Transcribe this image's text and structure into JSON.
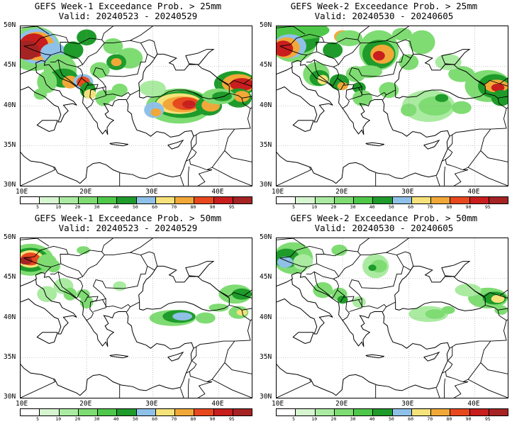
{
  "panels": [
    {
      "title": "GEFS Week-1 Exceedance Prob. > 25mm",
      "valid": "Valid: 20240523 - 20240529",
      "threshold": 25,
      "week": 1
    },
    {
      "title": "GEFS Week-2 Exceedance Prob. > 25mm",
      "valid": "Valid: 20240530 - 20240605",
      "threshold": 25,
      "week": 2
    },
    {
      "title": "GEFS Week-1 Exceedance Prob. > 50mm",
      "valid": "Valid: 20240523 - 20240529",
      "threshold": 50,
      "week": 1
    },
    {
      "title": "GEFS Week-2 Exceedance Prob. > 50mm",
      "valid": "Valid: 20240530 - 20240605",
      "threshold": 50,
      "week": 2
    }
  ],
  "axes": {
    "lat_labels": [
      "50N",
      "45N",
      "40N",
      "35N",
      "30N"
    ],
    "lon_labels": [
      "10E",
      "20E",
      "30E",
      "40E"
    ],
    "lat_range": [
      30,
      50
    ],
    "lon_range": [
      10,
      45
    ]
  },
  "colorbar": {
    "labels": [
      "5",
      "10",
      "20",
      "30",
      "40",
      "50",
      "60",
      "70",
      "80",
      "90",
      "95"
    ],
    "colors": [
      "#ffffff",
      "#d6f5d0",
      "#aaeba1",
      "#7fdc73",
      "#4fc84a",
      "#1e9b2a",
      "#8fc1e8",
      "#f5e27a",
      "#f2a838",
      "#e8481e",
      "#c81e1e",
      "#a52323"
    ]
  }
}
